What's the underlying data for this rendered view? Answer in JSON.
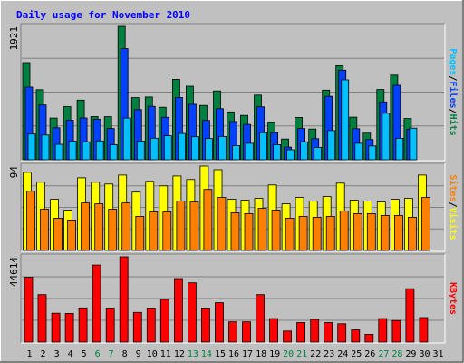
{
  "chart_data": {
    "type": "bar",
    "title": "Daily usage for November 2010",
    "days": [
      "1",
      "2",
      "3",
      "4",
      "5",
      "6",
      "7",
      "8",
      "9",
      "10",
      "11",
      "12",
      "13",
      "14",
      "15",
      "16",
      "17",
      "18",
      "19",
      "20",
      "21",
      "22",
      "23",
      "24",
      "25",
      "26",
      "27",
      "28",
      "29",
      "30",
      "31"
    ],
    "weekend_days": [
      "6",
      "7",
      "13",
      "14",
      "20",
      "21",
      "27",
      "28"
    ],
    "colors": {
      "hits": "#008040",
      "files": "#0040ff",
      "pages": "#00c0ff",
      "visits": "#ffff00",
      "sites": "#ff8000",
      "kbytes": "#ff0000",
      "weekend_label": "#008040",
      "weekday_label": "#000000",
      "title": "#0000ff",
      "background": "#c0c0c0"
    },
    "panels": [
      {
        "id": "hits",
        "ymax_label": "1921",
        "ymax": 1921,
        "side_label": [
          "Pages",
          "Files",
          "Hits"
        ],
        "series": [
          {
            "name": "Hits",
            "color": "#008040",
            "values": [
              1398,
              1009,
              600,
              764,
              858,
              621,
              620,
              1921,
              894,
              903,
              755,
              1158,
              1059,
              781,
              991,
              689,
              638,
              930,
              542,
              298,
              609,
              442,
              1002,
              1354,
              613,
              383,
              1012,
              1218,
              593,
              0,
              0
            ]
          },
          {
            "name": "Files",
            "color": "#0040ff",
            "values": [
              1045,
              788,
              460,
              568,
              601,
              582,
              450,
              1600,
              721,
              768,
              610,
              897,
              798,
              566,
              734,
              550,
              508,
              762,
              389,
              182,
              451,
              303,
              912,
              1290,
              447,
              292,
              832,
              1072,
              439,
              0,
              0
            ]
          },
          {
            "name": "Pages",
            "color": "#00c0ff",
            "values": [
              370,
              355,
              222,
              268,
              259,
              270,
              215,
              600,
              269,
              310,
              345,
              378,
              331,
              306,
              334,
              202,
              236,
              390,
              217,
              144,
              259,
              178,
              420,
              1150,
              237,
              199,
              669,
              308,
              455,
              0,
              0
            ]
          }
        ]
      },
      {
        "id": "visits",
        "ymax_label": "94",
        "ymax": 94,
        "side_label": [
          "Sites",
          "Visits"
        ],
        "series": [
          {
            "name": "Visits",
            "color": "#ffff00",
            "values": [
              87,
              76,
              57,
              45,
              81,
              76,
              74,
              84,
              65,
              77,
              72,
              83,
              79,
              94,
              90,
              57,
              56,
              58,
              73,
              52,
              59,
              55,
              60,
              75,
              56,
              55,
              54,
              57,
              58,
              84,
              0
            ]
          },
          {
            "name": "Sites",
            "color": "#ff8000",
            "values": [
              66,
              46,
              36,
              34,
              53,
              52,
              46,
              53,
              38,
              43,
              43,
              55,
              54,
              68,
              59,
              42,
              41,
              47,
              45,
              36,
              38,
              37,
              38,
              44,
              41,
              41,
              39,
              39,
              37,
              59,
              0
            ]
          }
        ]
      },
      {
        "id": "kbytes",
        "ymax_label": "44614",
        "ymax": 44614,
        "side_label": [
          "KBytes"
        ],
        "series": [
          {
            "name": "KBytes",
            "color": "#ff0000",
            "values": [
              33900,
              24800,
              15100,
              15000,
              17900,
              40300,
              17800,
              44614,
              15500,
              17800,
              22300,
              33200,
              31000,
              17800,
              20600,
              10600,
              10600,
              24800,
              12300,
              5800,
              10200,
              11800,
              10200,
              9600,
              6400,
              4100,
              12300,
              11300,
              27900,
              12800,
              0
            ]
          }
        ]
      }
    ]
  }
}
